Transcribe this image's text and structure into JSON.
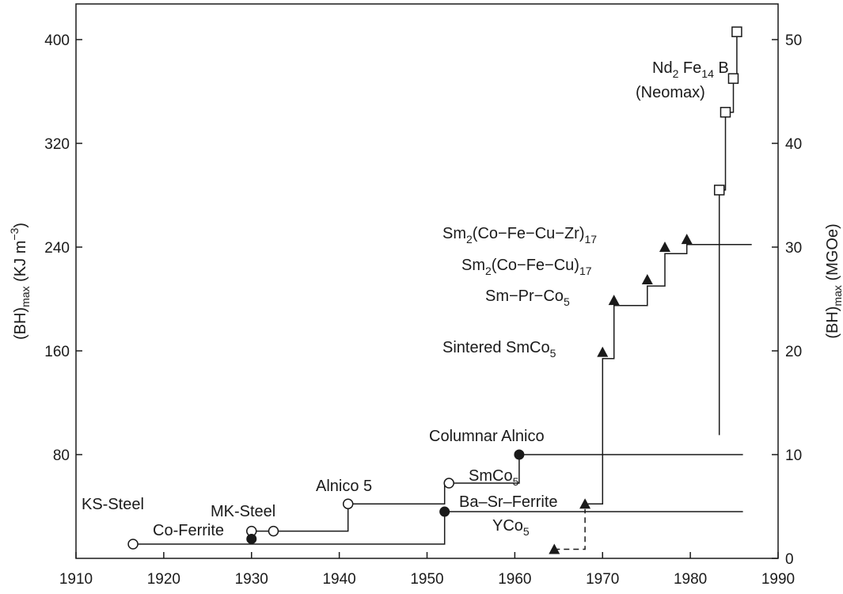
{
  "chart_data": {
    "type": "scatter",
    "xlabel": "",
    "ylabel_left": {
      "main": "(BH)",
      "sub": "max",
      "unit": " (KJ m",
      "sup": "−3",
      "close": ")"
    },
    "ylabel_right": {
      "main": "(BH)",
      "sub": "max",
      "unit": " (MGOe)"
    },
    "xlim": [
      1910,
      1990
    ],
    "ylim_left": [
      0,
      420
    ],
    "ylim_right": [
      0,
      52.5
    ],
    "x_ticks": [
      1910,
      1920,
      1930,
      1940,
      1950,
      1960,
      1970,
      1980,
      1990
    ],
    "y_ticks_left": [
      80,
      160,
      240,
      320,
      400
    ],
    "y_ticks_right": [
      0,
      10,
      20,
      30,
      40,
      50
    ],
    "legend": "none",
    "grid": false,
    "series": [
      {
        "marker": "open-circle",
        "points": [
          {
            "x": 1916.5,
            "y": 11
          },
          {
            "x": 1930,
            "y": 21
          },
          {
            "x": 1932.5,
            "y": 21
          },
          {
            "x": 1941,
            "y": 42
          },
          {
            "x": 1952.5,
            "y": 58
          }
        ],
        "step_line": [
          [
            1916.5,
            11
          ],
          [
            1952,
            11
          ],
          [
            1952,
            36
          ],
          [
            1986,
            36
          ]
        ],
        "step_line_2": [
          [
            1930,
            21
          ],
          [
            1941,
            21
          ],
          [
            1941,
            42
          ],
          [
            1952,
            42
          ],
          [
            1952,
            58
          ],
          [
            1960.5,
            58
          ],
          [
            1960.5,
            80
          ],
          [
            1986,
            80
          ]
        ]
      },
      {
        "marker": "filled-circle",
        "points": [
          {
            "x": 1930,
            "y": 15
          },
          {
            "x": 1952,
            "y": 36
          },
          {
            "x": 1960.5,
            "y": 80
          }
        ]
      },
      {
        "marker": "filled-triangle",
        "points": [
          {
            "x": 1964.5,
            "y": 7
          },
          {
            "x": 1968,
            "y": 42
          },
          {
            "x": 1970,
            "y": 159
          },
          {
            "x": 1971.3,
            "y": 199
          },
          {
            "x": 1975.1,
            "y": 215
          },
          {
            "x": 1977.1,
            "y": 240
          },
          {
            "x": 1979.6,
            "y": 246
          }
        ],
        "step_line": [
          [
            1968,
            42
          ],
          [
            1970,
            42
          ],
          [
            1970,
            154
          ],
          [
            1971.3,
            154
          ],
          [
            1971.3,
            195
          ],
          [
            1975.1,
            195
          ],
          [
            1975.1,
            210
          ],
          [
            1977.1,
            210
          ],
          [
            1977.1,
            235
          ],
          [
            1979.6,
            235
          ],
          [
            1979.6,
            242
          ],
          [
            1987,
            242
          ]
        ],
        "dashed_line": [
          [
            1964.5,
            7
          ],
          [
            1968,
            7
          ],
          [
            1968,
            38
          ]
        ]
      },
      {
        "marker": "open-square",
        "points": [
          {
            "x": 1983.3,
            "y": 284
          },
          {
            "x": 1984,
            "y": 344
          },
          {
            "x": 1984.9,
            "y": 370
          },
          {
            "x": 1985.3,
            "y": 406
          }
        ],
        "step_line": [
          [
            1983.3,
            95
          ],
          [
            1983.3,
            284
          ],
          [
            1984,
            284
          ],
          [
            1984,
            344
          ],
          [
            1984.9,
            344
          ],
          [
            1984.9,
            370
          ],
          [
            1985.3,
            370
          ],
          [
            1985.3,
            406
          ]
        ]
      }
    ],
    "annotations": [
      {
        "id": "ks-steel",
        "text": "KS-Steel"
      },
      {
        "id": "co-ferrite",
        "text": "Co-Ferrite"
      },
      {
        "id": "mk-steel",
        "text": "MK-Steel"
      },
      {
        "id": "alnico-5",
        "text": "Alnico 5"
      },
      {
        "id": "columnar-alnico",
        "text": "Columnar Alnico"
      },
      {
        "id": "smco5",
        "parts": [
          {
            "t": "SmCo"
          },
          {
            "t": "5",
            "sub": true
          }
        ]
      },
      {
        "id": "ba-sr-ferrite",
        "text": "Ba–Sr–Ferrite"
      },
      {
        "id": "yco5",
        "parts": [
          {
            "t": "YCo"
          },
          {
            "t": "5",
            "sub": true
          }
        ]
      },
      {
        "id": "sintered-smco5",
        "parts": [
          {
            "t": "Sintered SmCo"
          },
          {
            "t": "5",
            "sub": true
          }
        ]
      },
      {
        "id": "sm-pr-co5",
        "parts": [
          {
            "t": "Sm−Pr−Co"
          },
          {
            "t": "5",
            "sub": true
          }
        ]
      },
      {
        "id": "sm2-co-fe-cu-17",
        "parts": [
          {
            "t": "Sm"
          },
          {
            "t": "2",
            "sub": true
          },
          {
            "t": "(Co−Fe−Cu)"
          },
          {
            "t": "17",
            "sub": true
          }
        ]
      },
      {
        "id": "sm2-co-fe-cu-zr-17",
        "parts": [
          {
            "t": "Sm"
          },
          {
            "t": "2",
            "sub": true
          },
          {
            "t": "(Co−Fe−Cu−Zr)"
          },
          {
            "t": "17",
            "sub": true
          }
        ]
      },
      {
        "id": "nd2fe14b",
        "parts": [
          {
            "t": "Nd"
          },
          {
            "t": "2",
            "sub": true
          },
          {
            "t": " Fe"
          },
          {
            "t": "14",
            "sub": true
          },
          {
            "t": " B"
          }
        ]
      },
      {
        "id": "neomax",
        "text": "(Neomax)"
      }
    ]
  }
}
